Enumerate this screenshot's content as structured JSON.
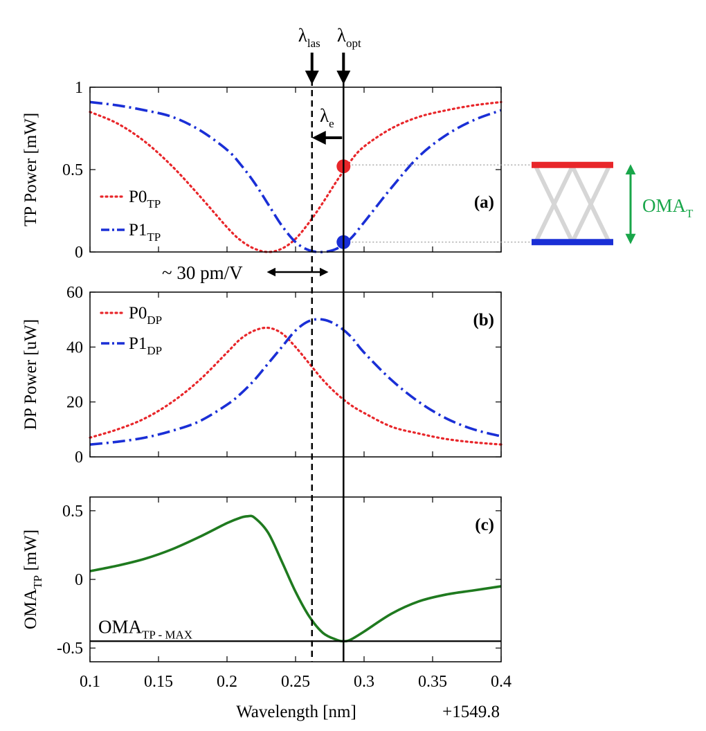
{
  "chart_data": [
    {
      "type": "line",
      "panel": "(a)",
      "ylabel": "TP Power [mW]",
      "xlim": [
        0.1,
        0.4
      ],
      "ylim": [
        0,
        1
      ],
      "yticks": [
        0,
        0.5,
        1
      ],
      "ytick_labels": [
        "0",
        "0.5",
        "1"
      ],
      "x": [
        0.1,
        0.12,
        0.14,
        0.16,
        0.18,
        0.2,
        0.21,
        0.22,
        0.23,
        0.24,
        0.25,
        0.26,
        0.27,
        0.28,
        0.29,
        0.3,
        0.32,
        0.34,
        0.36,
        0.38,
        0.4
      ],
      "series": [
        {
          "name": "P0",
          "sub": "TP",
          "color": "#e8262a",
          "style": "dotted",
          "values": [
            0.85,
            0.78,
            0.67,
            0.52,
            0.34,
            0.15,
            0.07,
            0.02,
            0.0,
            0.02,
            0.08,
            0.18,
            0.3,
            0.43,
            0.55,
            0.64,
            0.75,
            0.82,
            0.86,
            0.89,
            0.91
          ]
        },
        {
          "name": "P1",
          "sub": "TP",
          "color": "#1a2fd6",
          "style": "dashdot",
          "values": [
            0.91,
            0.89,
            0.86,
            0.82,
            0.74,
            0.62,
            0.53,
            0.42,
            0.29,
            0.16,
            0.06,
            0.01,
            0.0,
            0.02,
            0.08,
            0.18,
            0.39,
            0.58,
            0.71,
            0.8,
            0.86
          ]
        }
      ],
      "markers": [
        {
          "x": 0.285,
          "y": 0.52,
          "color": "#e8262a"
        },
        {
          "x": 0.285,
          "y": 0.06,
          "color": "#1a2fd6"
        }
      ]
    },
    {
      "type": "line",
      "panel": "(b)",
      "ylabel": "DP Power [uW]",
      "xlim": [
        0.1,
        0.4
      ],
      "ylim": [
        0,
        60
      ],
      "yticks": [
        0,
        20,
        40,
        60
      ],
      "ytick_labels": [
        "0",
        "20",
        "40",
        "60"
      ],
      "x": [
        0.1,
        0.12,
        0.14,
        0.16,
        0.18,
        0.2,
        0.21,
        0.22,
        0.23,
        0.24,
        0.25,
        0.26,
        0.27,
        0.28,
        0.29,
        0.3,
        0.32,
        0.34,
        0.36,
        0.38,
        0.4
      ],
      "series": [
        {
          "name": "P0",
          "sub": "DP",
          "color": "#e8262a",
          "style": "dotted",
          "values": [
            7,
            10,
            14,
            20,
            28,
            38,
            43,
            46,
            47,
            45,
            40,
            34,
            28,
            23,
            19,
            16,
            11,
            8.5,
            6.5,
            5.3,
            4.5
          ]
        },
        {
          "name": "P1",
          "sub": "DP",
          "color": "#1a2fd6",
          "style": "dashdot",
          "values": [
            4.5,
            5.5,
            7,
            9.5,
            13,
            19,
            23,
            28,
            34,
            40,
            46,
            49.5,
            50,
            48,
            44,
            38,
            28,
            20,
            14,
            10,
            7.5
          ]
        }
      ]
    },
    {
      "type": "line",
      "panel": "(c)",
      "ylabel": "OMA",
      "ylabel_sub": "TP",
      "ylabel_unit": " [mW]",
      "xlabel": "Wavelength [nm]",
      "x_offset_label": "+1549.8",
      "xlim": [
        0.1,
        0.4
      ],
      "ylim": [
        -0.6,
        0.6
      ],
      "yticks": [
        -0.5,
        0,
        0.5
      ],
      "ytick_labels": [
        "-0.5",
        "0",
        "0.5"
      ],
      "xticks": [
        0.1,
        0.15,
        0.2,
        0.25,
        0.3,
        0.35,
        0.4
      ],
      "xtick_labels": [
        "0.1",
        "0.15",
        "0.2",
        "0.25",
        "0.3",
        "0.35",
        "0.4"
      ],
      "x": [
        0.1,
        0.12,
        0.14,
        0.16,
        0.18,
        0.2,
        0.21,
        0.215,
        0.22,
        0.23,
        0.24,
        0.25,
        0.26,
        0.27,
        0.28,
        0.285,
        0.29,
        0.3,
        0.32,
        0.34,
        0.36,
        0.38,
        0.4
      ],
      "series": [
        {
          "name": "OMA_TP",
          "color": "#1f7a1f",
          "style": "solid",
          "values": [
            0.06,
            0.1,
            0.15,
            0.22,
            0.31,
            0.41,
            0.45,
            0.46,
            0.45,
            0.34,
            0.13,
            -0.09,
            -0.27,
            -0.39,
            -0.44,
            -0.45,
            -0.44,
            -0.38,
            -0.25,
            -0.16,
            -0.11,
            -0.08,
            -0.05
          ]
        }
      ],
      "hline": {
        "y": -0.45,
        "label": "OMA",
        "label_sub": "TP - MAX"
      }
    }
  ],
  "annotations": {
    "lambda_las": {
      "text": "λ",
      "sub": "las",
      "x": 0.262
    },
    "lambda_opt": {
      "text": "λ",
      "sub": "opt",
      "x": 0.285
    },
    "lambda_e": {
      "text": "λ",
      "sub": "e"
    },
    "shift_label": "~ 30 pm/V",
    "oma_side_label": {
      "text": "OMA",
      "sub": "T"
    }
  }
}
